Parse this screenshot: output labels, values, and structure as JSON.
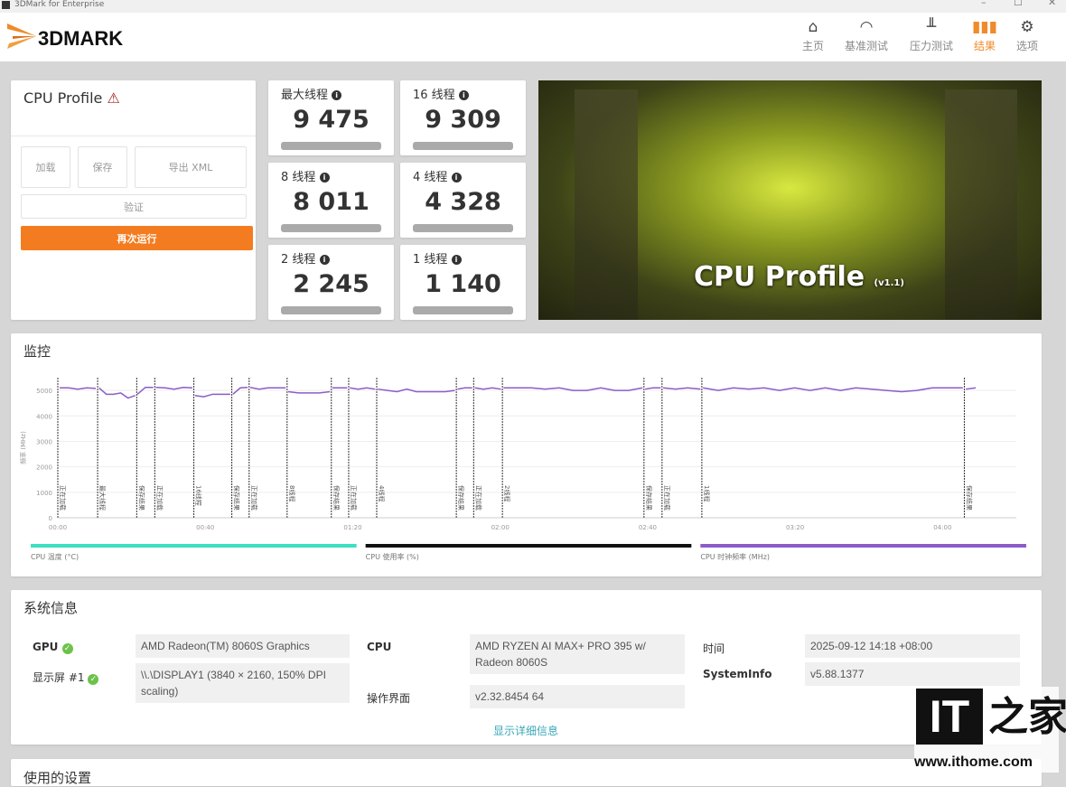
{
  "window": {
    "title": "3DMark for Enterprise",
    "controls": [
      "–",
      "☐",
      "✕"
    ]
  },
  "header": {
    "logo": "3DMARK",
    "nav": [
      {
        "label": "主页",
        "icon": "home-icon",
        "glyph": "⌂"
      },
      {
        "label": "基准测试",
        "icon": "gauge-icon",
        "glyph": "◠"
      },
      {
        "label": "压力测试",
        "icon": "bar-chart-icon",
        "glyph": "📊"
      },
      {
        "label": "结果",
        "icon": "results-icon",
        "glyph": "▮",
        "active": true
      },
      {
        "label": "选项",
        "icon": "gear-icon",
        "glyph": "⚙"
      }
    ],
    "accent": "#f08a2a"
  },
  "result": {
    "title": "CPU Profile",
    "warning": "⚠",
    "buttons": {
      "load": "加载",
      "save": "保存",
      "export": "导出 XML",
      "validate": "验证",
      "rerun": "再次运行"
    }
  },
  "scores": [
    {
      "label": "最大线程",
      "value": "9 475"
    },
    {
      "label": "16 线程",
      "value": "9 309"
    },
    {
      "label": "8 线程",
      "value": "8 011"
    },
    {
      "label": "4 线程",
      "value": "4 328"
    },
    {
      "label": "2 线程",
      "value": "2 245"
    },
    {
      "label": "1 线程",
      "value": "1 140"
    }
  ],
  "banner": {
    "title": "CPU Profile",
    "version": "(v1.1)"
  },
  "monitor": {
    "title": "监控"
  },
  "chart_data": {
    "type": "line",
    "ylabel": "频率 (MHz)",
    "ylim": [
      0,
      5500
    ],
    "yticks": [
      0,
      1000,
      2000,
      3000,
      4000,
      5000
    ],
    "xlim": [
      0,
      260
    ],
    "xticks": [
      {
        "t": 0,
        "label": "00:00"
      },
      {
        "t": 40,
        "label": "00:40"
      },
      {
        "t": 80,
        "label": "01:20"
      },
      {
        "t": 120,
        "label": "02:00"
      },
      {
        "t": 160,
        "label": "02:40"
      },
      {
        "t": 200,
        "label": "03:20"
      },
      {
        "t": 240,
        "label": "04:00"
      }
    ],
    "grid": true,
    "markers": [
      {
        "t": 0,
        "label": "正在加载"
      },
      {
        "t": 10.8,
        "label": "最大线程"
      },
      {
        "t": 21.4,
        "label": "保存结果"
      },
      {
        "t": 26.3,
        "label": "正在加载"
      },
      {
        "t": 36.9,
        "label": "16线程"
      },
      {
        "t": 47.2,
        "label": "保存结果"
      },
      {
        "t": 51.9,
        "label": "正在加载"
      },
      {
        "t": 62.2,
        "label": "8线程"
      },
      {
        "t": 74.2,
        "label": "保存结果"
      },
      {
        "t": 78.9,
        "label": "正在加载"
      },
      {
        "t": 86.5,
        "label": "4线程"
      },
      {
        "t": 108.1,
        "label": "保存结果"
      },
      {
        "t": 112.8,
        "label": "正在加载"
      },
      {
        "t": 120.6,
        "label": "2线程"
      },
      {
        "t": 159,
        "label": "保存结果"
      },
      {
        "t": 163.9,
        "label": "正在加载"
      },
      {
        "t": 174.7,
        "label": "1线程"
      },
      {
        "t": 245.9,
        "label": "保存结果"
      }
    ],
    "series": [
      {
        "name": "CPU 时钟频率 (MHz)",
        "color": "#8b5cc8",
        "segments": [
          {
            "start": 0.5,
            "end": 10.3,
            "values": [
              5100,
              5100,
              5050,
              5100,
              5080
            ]
          },
          {
            "start": 11.2,
            "end": 21,
            "values": [
              5100,
              4850,
              4850,
              4900,
              4700,
              4800
            ]
          },
          {
            "start": 21.6,
            "end": 25.9,
            "values": [
              4850,
              5120,
              5120
            ]
          },
          {
            "start": 26.6,
            "end": 36.5,
            "values": [
              5120,
              5100,
              5050,
              5120,
              5100
            ]
          },
          {
            "start": 37.2,
            "end": 46.8,
            "values": [
              4800,
              4750,
              4850,
              4850,
              4850
            ]
          },
          {
            "start": 47.5,
            "end": 51.5,
            "values": [
              4850,
              5100,
              5120
            ]
          },
          {
            "start": 52.2,
            "end": 61.8,
            "values": [
              5120,
              5050,
              5100,
              5100,
              5100
            ]
          },
          {
            "start": 62.5,
            "end": 73.8,
            "values": [
              4950,
              4900,
              4900,
              4900,
              4950
            ]
          },
          {
            "start": 74.5,
            "end": 78.5,
            "values": [
              5100,
              5100
            ]
          },
          {
            "start": 79.2,
            "end": 86.1,
            "values": [
              5100,
              5050,
              5100,
              5050
            ]
          },
          {
            "start": 86.8,
            "end": 107.7,
            "values": [
              5050,
              5000,
              4950,
              5050,
              4950,
              4950,
              4950,
              4950,
              5000
            ]
          },
          {
            "start": 108.4,
            "end": 112.4,
            "values": [
              5050,
              5100,
              5100
            ]
          },
          {
            "start": 113.1,
            "end": 120.2,
            "values": [
              5100,
              5050,
              5100,
              5050
            ]
          },
          {
            "start": 120.9,
            "end": 158.6,
            "values": [
              5100,
              5100,
              5100,
              5050,
              5100,
              5000,
              5000,
              5100,
              5000,
              5000,
              5100
            ]
          },
          {
            "start": 159.3,
            "end": 163.5,
            "values": [
              5050,
              5100,
              5100
            ]
          },
          {
            "start": 164.2,
            "end": 174.3,
            "values": [
              5100,
              5050,
              5100,
              5050
            ]
          },
          {
            "start": 175,
            "end": 245.5,
            "values": [
              5100,
              5000,
              5100,
              5050,
              5100,
              5000,
              5100,
              5000,
              5100,
              5000,
              5100,
              5050,
              5000,
              4950,
              5000,
              5100,
              5100,
              5100
            ]
          },
          {
            "start": 246.3,
            "end": 249,
            "values": [
              5050,
              5100
            ]
          }
        ]
      }
    ],
    "legend": [
      {
        "label": "CPU 温度 (°C)",
        "color": "#3de0c0"
      },
      {
        "label": "CPU 使用率 (%)",
        "color": "#111111"
      },
      {
        "label": "CPU 时钟频率 (MHz)",
        "color": "#8b5cc8"
      }
    ]
  },
  "sysinfo": {
    "title": "系统信息",
    "gpu": {
      "label": "GPU",
      "value": "AMD Radeon(TM) 8060S Graphics"
    },
    "display": {
      "label": "显示屏 #1",
      "value": "\\\\.\\DISPLAY1 (3840 × 2160, 150% DPI scaling)"
    },
    "cpu": {
      "label": "CPU",
      "value": "AMD RYZEN AI MAX+ PRO 395 w/ Radeon 8060S"
    },
    "os": {
      "label": "操作界面",
      "value": "v2.32.8454 64"
    },
    "time": {
      "label": "时间",
      "value": "2025-09-12 14:18 +08:00"
    },
    "systeminfo": {
      "label": "SystemInfo",
      "value": "v5.88.1377"
    },
    "details_link": "显示详细信息"
  },
  "settings": {
    "title": "使用的设置"
  },
  "watermark": {
    "text": "IT之家",
    "url_text": "www.ithome.com"
  }
}
